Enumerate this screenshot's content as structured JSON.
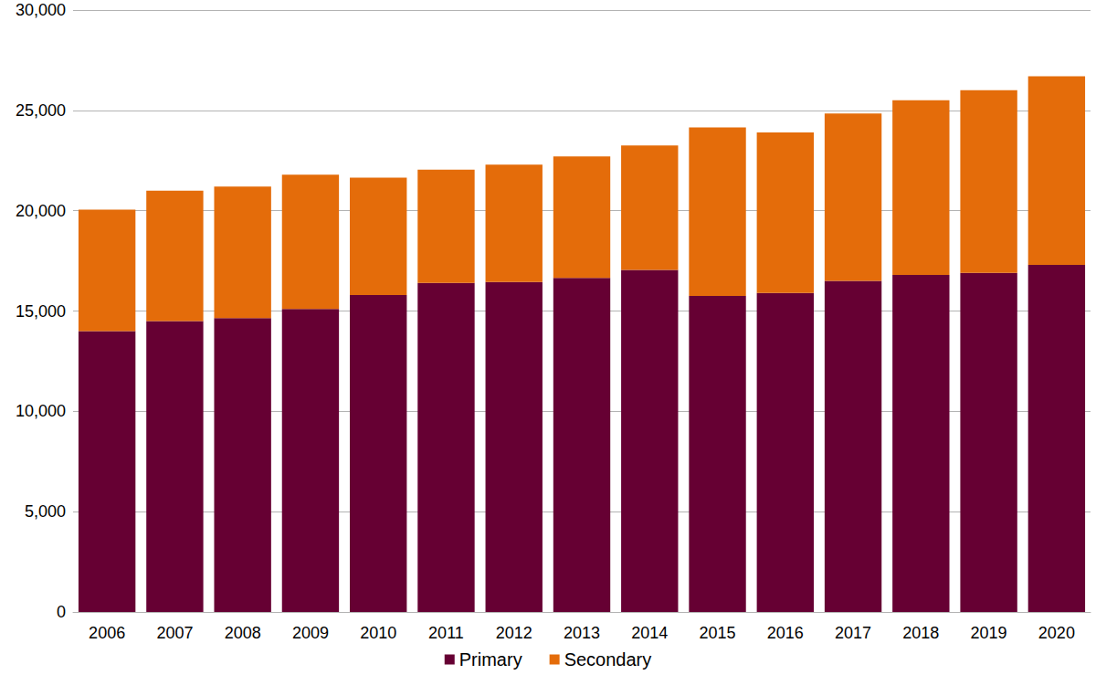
{
  "chart_data": {
    "type": "bar",
    "categories": [
      "2006",
      "2007",
      "2008",
      "2009",
      "2010",
      "2011",
      "2012",
      "2013",
      "2014",
      "2015",
      "2016",
      "2017",
      "2018",
      "2019",
      "2020"
    ],
    "series": [
      {
        "name": "Primary",
        "color": "#660033",
        "values": [
          14000,
          14500,
          14650,
          15100,
          15800,
          16400,
          16450,
          16650,
          17050,
          15750,
          15900,
          16500,
          16800,
          16900,
          17300
        ]
      },
      {
        "name": "Secondary",
        "color": "#e46c0a",
        "values": [
          6050,
          6500,
          6550,
          6700,
          5850,
          5650,
          5850,
          6050,
          6200,
          8400,
          8000,
          8350,
          8700,
          9100,
          9400
        ]
      }
    ],
    "stacked": true,
    "ylim": [
      0,
      30000
    ],
    "yticks": [
      0,
      {
        "value": 5000,
        "label": "5,000"
      },
      {
        "value": 10000,
        "label": "10,000"
      },
      {
        "value": 15000,
        "label": "15,000"
      },
      {
        "value": 20000,
        "label": "20,000"
      },
      {
        "value": 25000,
        "label": "25,000"
      },
      {
        "value": 30000,
        "label": "30,000"
      }
    ],
    "grid": true,
    "legend": "bottom"
  }
}
